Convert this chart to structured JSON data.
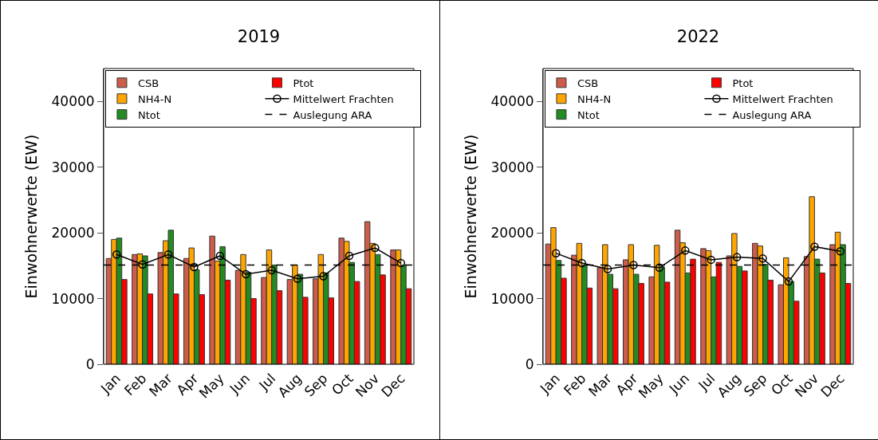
{
  "chart_data": [
    {
      "type": "bar",
      "title": "2019",
      "ylabel": "Einwohnerwerte (EW)",
      "categories": [
        "Jan",
        "Feb",
        "Mar",
        "Apr",
        "May",
        "Jun",
        "Jul",
        "Aug",
        "Sep",
        "Oct",
        "Nov",
        "Dec"
      ],
      "series": [
        {
          "name": "CSB",
          "color": "#cd5c4a",
          "values": [
            16100,
            16700,
            17000,
            16100,
            19500,
            14300,
            13200,
            12900,
            13000,
            19200,
            21700,
            17400
          ]
        },
        {
          "name": "NH4-N",
          "color": "#ffa500",
          "values": [
            19000,
            16800,
            18800,
            17700,
            15700,
            16700,
            17400,
            15100,
            16700,
            18700,
            18400,
            17400
          ]
        },
        {
          "name": "Ntot",
          "color": "#228b22",
          "values": [
            19200,
            16500,
            20400,
            14400,
            17900,
            14000,
            15100,
            13700,
            13900,
            15500,
            16700,
            15100
          ]
        },
        {
          "name": "Ptot",
          "color": "#ff0000",
          "values": [
            12900,
            10700,
            10700,
            10600,
            12800,
            10000,
            11200,
            10200,
            10100,
            12600,
            13600,
            11500
          ]
        },
        {
          "name": "Mittelwert Frachten",
          "type": "line",
          "color": "#000000",
          "marker": "circle",
          "line_style": "solid",
          "values": [
            16700,
            15200,
            16700,
            14800,
            16500,
            13700,
            14300,
            13000,
            13400,
            16500,
            17700,
            15400
          ]
        }
      ],
      "ref_lines": [
        {
          "axis": "y",
          "value": 15100,
          "label": "Auslegung ARA",
          "color": "#000000",
          "line_style": "dashed"
        }
      ],
      "ylim": [
        0,
        45000
      ],
      "yticks": [
        0,
        10000,
        20000,
        30000,
        40000
      ],
      "grid": false,
      "legend": "top left"
    },
    {
      "type": "bar",
      "title": "2022",
      "ylabel": "Einwohnerwerte (EW)",
      "categories": [
        "Jan",
        "Feb",
        "Mar",
        "Apr",
        "May",
        "Jun",
        "Jul",
        "Aug",
        "Sep",
        "Oct",
        "Nov",
        "Dec"
      ],
      "series": [
        {
          "name": "CSB",
          "color": "#cd5c4a",
          "values": [
            18300,
            16600,
            14700,
            15900,
            13300,
            20400,
            17600,
            16500,
            18400,
            12100,
            16400,
            18200
          ]
        },
        {
          "name": "NH4-N",
          "color": "#ffa500",
          "values": [
            20800,
            18400,
            18200,
            18200,
            18100,
            18500,
            17300,
            19900,
            18000,
            16200,
            25500,
            20100
          ]
        },
        {
          "name": "Ntot",
          "color": "#228b22",
          "values": [
            15800,
            15100,
            13700,
            13700,
            14800,
            13900,
            13300,
            14900,
            15200,
            12600,
            16000,
            18200
          ]
        },
        {
          "name": "Ptot",
          "color": "#ff0000",
          "values": [
            13100,
            11600,
            11500,
            12300,
            12500,
            16000,
            15500,
            14200,
            12800,
            9600,
            13900,
            12300
          ]
        },
        {
          "name": "Mittelwert Frachten",
          "type": "line",
          "color": "#000000",
          "marker": "circle",
          "line_style": "solid",
          "values": [
            16900,
            15400,
            14500,
            15100,
            14700,
            17300,
            15900,
            16300,
            16100,
            12600,
            17900,
            17200
          ]
        }
      ],
      "ref_lines": [
        {
          "axis": "y",
          "value": 15100,
          "label": "Auslegung ARA",
          "color": "#000000",
          "line_style": "dashed"
        }
      ],
      "ylim": [
        0,
        45000
      ],
      "yticks": [
        0,
        10000,
        20000,
        30000,
        40000
      ],
      "grid": false,
      "legend": "top left"
    }
  ]
}
